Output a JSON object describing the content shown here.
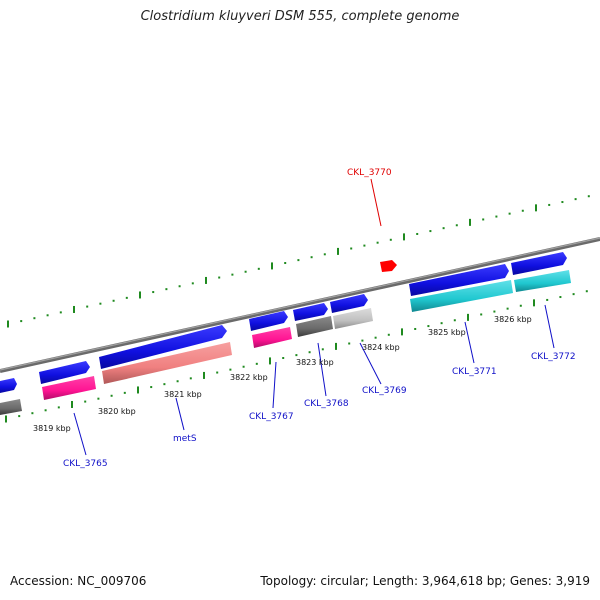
{
  "header": {
    "title": "Clostridium kluyveri DSM 555, complete genome"
  },
  "footer": {
    "accession": "Accession: NC_009706",
    "summary": "Topology: circular; Length: 3,964,618 bp; Genes: 3,919"
  },
  "ticks": [
    "3819 kbp",
    "3820 kbp",
    "3821 kbp",
    "3822 kbp",
    "3823 kbp",
    "3824 kbp",
    "3825 kbp",
    "3826 kbp"
  ],
  "gene_labels": [
    "CKL_3770",
    "CKL_3765",
    "metS",
    "CKL_3767",
    "CKL_3768",
    "CKL_3769",
    "CKL_3771",
    "CKL_3772"
  ],
  "colors": {
    "backbone": "#7a7a7a",
    "tick_green": "#1f8a1f",
    "cds_blue": "#1010e0",
    "magenta": "#ff1493",
    "salmon": "#f08080",
    "dark_gray": "#6a6a6a",
    "light_gray": "#c0c0c0",
    "cyan": "#20c8d0",
    "red": "#ff0000",
    "label_blue": "#1010c8",
    "label_red": "#e00000"
  }
}
